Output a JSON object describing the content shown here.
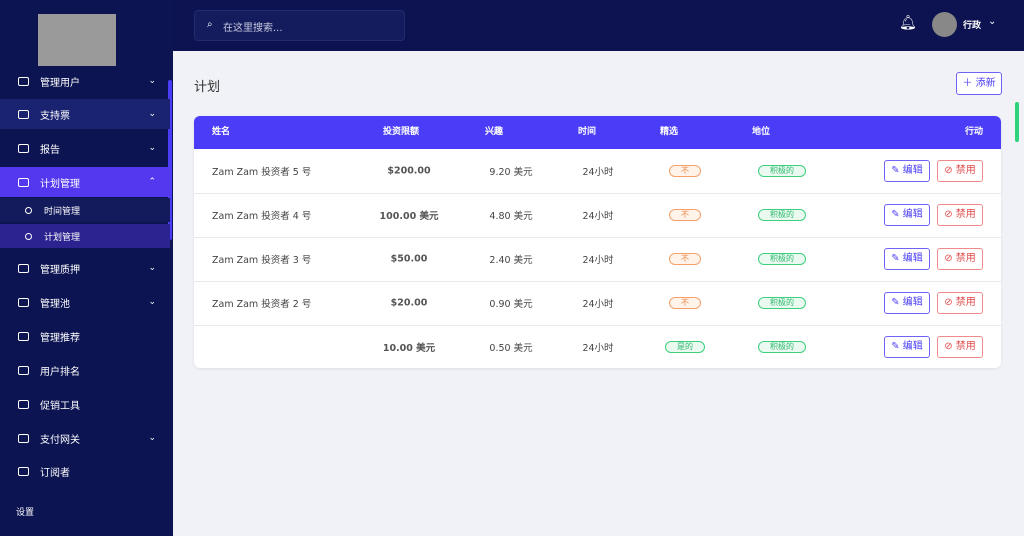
{
  "sidebar": {
    "items": [
      {
        "label": "管理用户",
        "caret": true
      },
      {
        "label": "支持票",
        "caret": true
      },
      {
        "label": "报告",
        "caret": true
      },
      {
        "label": "计划管理",
        "caret": true,
        "active": true,
        "children": [
          "时间管理",
          "计划管理"
        ]
      },
      {
        "label": "管理质押",
        "caret": true
      },
      {
        "label": "管理池",
        "caret": true
      },
      {
        "label": "管理推荐"
      },
      {
        "label": "用户排名"
      },
      {
        "label": "促销工具"
      },
      {
        "label": "支付网关",
        "caret": true
      },
      {
        "label": "订阅者"
      }
    ],
    "footer": "设置"
  },
  "header": {
    "search_placeholder": "在这里搜索...",
    "user": "行政"
  },
  "page": {
    "title": "计划",
    "add_button": "添新"
  },
  "table": {
    "columns": [
      "姓名",
      "投资限额",
      "兴趣",
      "时间",
      "精选",
      "地位",
      "行动"
    ],
    "rows": [
      {
        "name": "Zam Zam 投资者 5 号",
        "limit": "$200.00",
        "interest": "9.20 美元",
        "time": "24小时",
        "featured": "不",
        "status": "积极的"
      },
      {
        "name": "Zam Zam 投资者 4 号",
        "limit": "100.00 美元",
        "interest": "4.80 美元",
        "time": "24小时",
        "featured": "不",
        "status": "积极的"
      },
      {
        "name": "Zam Zam 投资者 3 号",
        "limit": "$50.00",
        "interest": "2.40 美元",
        "time": "24小时",
        "featured": "不",
        "status": "积极的"
      },
      {
        "name": "Zam Zam 投资者 2 号",
        "limit": "$20.00",
        "interest": "0.90 美元",
        "time": "24小时",
        "featured": "不",
        "status": "积极的"
      },
      {
        "limit": "10.00 美元",
        "interest": "0.50 美元",
        "time": "24小时",
        "featured": "是的",
        "status": "积极的"
      }
    ],
    "actions": {
      "edit": "编辑",
      "disable": "禁用"
    }
  }
}
